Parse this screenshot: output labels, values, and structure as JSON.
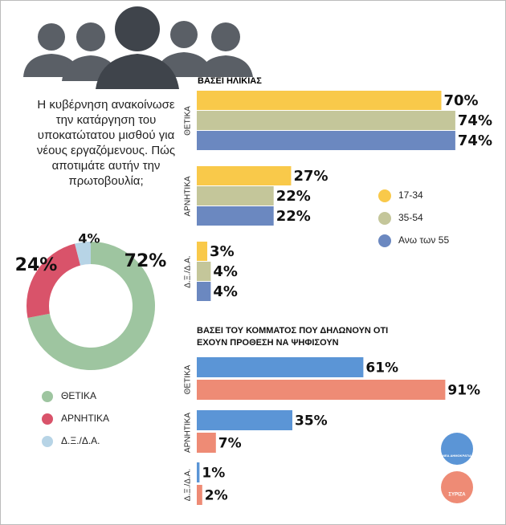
{
  "chart_data": [
    {
      "type": "pie",
      "donut": true,
      "title": "Η κυβέρνηση ανακοίνωσε την κατάργηση του υποκατώτατου μισθού για νέους εργαζόμενους. Πώς αποτιμάτε αυτήν την πρωτοβουλία;",
      "categories": [
        "ΘΕΤΙΚΑ",
        "ΑΡΝΗΤΙΚΑ",
        "Δ.Ξ./Δ.Α."
      ],
      "values": [
        72,
        24,
        4
      ],
      "value_labels": [
        "72%",
        "24%",
        "4%"
      ],
      "colors": [
        "#9ec5a0",
        "#d9536a",
        "#b7d4e6"
      ]
    },
    {
      "type": "bar",
      "orientation": "horizontal",
      "title": "ΒΑΣΕΙ ΗΛΙΚΙΑΣ",
      "categories": [
        "ΘΕΤΙΚΑ",
        "ΑΡΝΗΤΙΚΑ",
        "Δ.Ξ./Δ.Α."
      ],
      "series": [
        {
          "name": "17-34",
          "color": "#f9c94a",
          "values": [
            70,
            27,
            3
          ],
          "value_labels": [
            "70%",
            "27%",
            "3%"
          ]
        },
        {
          "name": "35-54",
          "color": "#c4c69a",
          "values": [
            74,
            22,
            4
          ],
          "value_labels": [
            "74%",
            "22%",
            "4%"
          ]
        },
        {
          "name": "Ανω των 55",
          "color": "#6b88c0",
          "values": [
            74,
            22,
            4
          ],
          "value_labels": [
            "74%",
            "22%",
            "4%"
          ]
        }
      ]
    },
    {
      "type": "bar",
      "orientation": "horizontal",
      "title": "ΒΑΣΕΙ ΤΟΥ ΚΟΜΜΑΤΟΣ ΠΟΥ ΔΗΛΩΝΟΥΝ ΟΤΙ ΕΧΟΥΝ ΠΡΟΘΕΣΗ ΝΑ ΨΗΦΙΣΟΥΝ",
      "categories": [
        "ΘΕΤΙΚΑ",
        "ΑΡΝΗΤΙΚΑ",
        "Δ.Ξ./Δ.Α."
      ],
      "series": [
        {
          "name": "ΝΕΑ ΔΗΜΟΚΡΑΤΙΑ",
          "color": "#5b95d6",
          "values": [
            61,
            35,
            1
          ],
          "value_labels": [
            "61%",
            "35%",
            "1%"
          ]
        },
        {
          "name": "ΣΥΡΙΖΑ",
          "color": "#ee8b75",
          "values": [
            91,
            7,
            2
          ],
          "value_labels": [
            "91%",
            "7%",
            "2%"
          ]
        }
      ]
    }
  ]
}
